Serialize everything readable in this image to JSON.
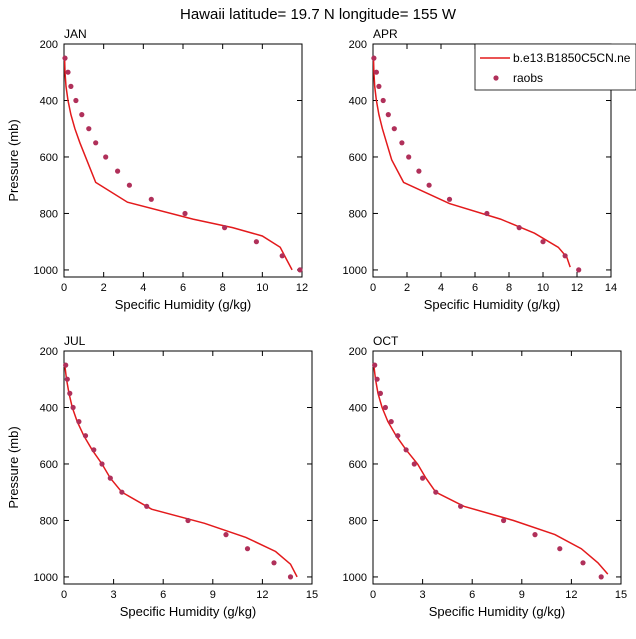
{
  "figure": {
    "title": "Hawaii  latitude= 19.7 N longitude= 155 W",
    "legend": {
      "placement": "top-right",
      "model_label": "b.e13.B1850C5CN.ne",
      "obs_label": "raobs"
    },
    "colors": {
      "model_line": "#e31a1c",
      "obs_marker": "#b0305a",
      "axes": "#000000",
      "background": "#ffffff"
    }
  },
  "chart_data": [
    {
      "type": "line",
      "panel": "JAN",
      "xlabel": "Specific Humidity (g/kg)",
      "ylabel": "Pressure (mb)",
      "xlim": [
        0,
        12
      ],
      "ylim": [
        200,
        1025
      ],
      "y_inverted": true,
      "xticks": [
        0,
        2,
        4,
        6,
        8,
        10,
        12
      ],
      "yticks": [
        200,
        400,
        600,
        800,
        1000
      ],
      "grid": false,
      "series": [
        {
          "name": "b.e13.B1850C5CN.ne",
          "kind": "line",
          "x": [
            0.03,
            0.05,
            0.1,
            0.2,
            0.35,
            0.55,
            0.8,
            1.6,
            3.2,
            6.5,
            8.5,
            10.0,
            10.9,
            11.2,
            11.5
          ],
          "y": [
            250,
            300,
            350,
            400,
            450,
            500,
            550,
            690,
            760,
            820,
            850,
            880,
            920,
            960,
            1000
          ]
        },
        {
          "name": "raobs",
          "kind": "scatter",
          "x": [
            0.05,
            0.2,
            0.35,
            0.6,
            0.9,
            1.25,
            1.6,
            2.1,
            2.7,
            3.3,
            4.4,
            6.1,
            8.1,
            9.7,
            11.0,
            11.9
          ],
          "y": [
            250,
            300,
            350,
            400,
            450,
            500,
            550,
            600,
            650,
            700,
            750,
            800,
            850,
            900,
            950,
            1000
          ]
        }
      ]
    },
    {
      "type": "line",
      "panel": "APR",
      "xlabel": "Specific Humidity (g/kg)",
      "ylabel": "",
      "xlim": [
        0,
        14
      ],
      "ylim": [
        200,
        1025
      ],
      "y_inverted": true,
      "xticks": [
        0,
        2,
        4,
        6,
        8,
        10,
        12,
        14
      ],
      "yticks": [
        200,
        400,
        600,
        800,
        1000
      ],
      "grid": false,
      "series": [
        {
          "name": "b.e13.B1850C5CN.ne",
          "kind": "line",
          "x": [
            0.03,
            0.05,
            0.1,
            0.2,
            0.35,
            0.55,
            0.8,
            1.1,
            1.8,
            4.5,
            7.5,
            9.5,
            10.9,
            11.4,
            11.6
          ],
          "y": [
            250,
            300,
            350,
            400,
            450,
            500,
            550,
            610,
            690,
            765,
            820,
            870,
            920,
            955,
            990
          ]
        },
        {
          "name": "raobs",
          "kind": "scatter",
          "x": [
            0.05,
            0.2,
            0.35,
            0.6,
            0.9,
            1.25,
            1.7,
            2.1,
            2.7,
            3.3,
            4.5,
            6.7,
            8.6,
            10.0,
            11.3,
            12.1
          ],
          "y": [
            250,
            300,
            350,
            400,
            450,
            500,
            550,
            600,
            650,
            700,
            750,
            800,
            850,
            900,
            950,
            1000
          ]
        }
      ]
    },
    {
      "type": "line",
      "panel": "JUL",
      "xlabel": "Specific Humidity (g/kg)",
      "ylabel": "Pressure (mb)",
      "xlim": [
        0,
        15
      ],
      "ylim": [
        200,
        1025
      ],
      "y_inverted": true,
      "xticks": [
        0,
        3,
        6,
        9,
        12,
        15
      ],
      "yticks": [
        200,
        400,
        600,
        800,
        1000
      ],
      "grid": false,
      "series": [
        {
          "name": "b.e13.B1850C5CN.ne",
          "kind": "line",
          "x": [
            0.05,
            0.15,
            0.3,
            0.5,
            0.8,
            1.2,
            1.7,
            2.3,
            2.8,
            3.5,
            5.3,
            8.5,
            11.0,
            12.8,
            13.7,
            14.1
          ],
          "y": [
            250,
            300,
            350,
            400,
            450,
            500,
            550,
            600,
            650,
            700,
            760,
            810,
            860,
            910,
            955,
            1000
          ]
        },
        {
          "name": "raobs",
          "kind": "scatter",
          "x": [
            0.1,
            0.2,
            0.35,
            0.55,
            0.9,
            1.3,
            1.8,
            2.3,
            2.8,
            3.5,
            5.0,
            7.5,
            9.8,
            11.1,
            12.7,
            13.7
          ],
          "y": [
            250,
            300,
            350,
            400,
            450,
            500,
            550,
            600,
            650,
            700,
            750,
            800,
            850,
            900,
            950,
            1000
          ]
        }
      ]
    },
    {
      "type": "line",
      "panel": "OCT",
      "xlabel": "Specific Humidity (g/kg)",
      "ylabel": "",
      "xlim": [
        0,
        15
      ],
      "ylim": [
        200,
        1025
      ],
      "y_inverted": true,
      "xticks": [
        0,
        3,
        6,
        9,
        12,
        15
      ],
      "yticks": [
        200,
        400,
        600,
        800,
        1000
      ],
      "grid": false,
      "series": [
        {
          "name": "b.e13.B1850C5CN.ne",
          "kind": "line",
          "x": [
            0.05,
            0.15,
            0.3,
            0.55,
            0.9,
            1.4,
            2.0,
            2.7,
            3.2,
            3.8,
            5.5,
            8.5,
            11.0,
            12.6,
            13.6,
            14.2
          ],
          "y": [
            250,
            300,
            350,
            400,
            450,
            500,
            550,
            600,
            650,
            700,
            750,
            800,
            850,
            900,
            950,
            990
          ]
        },
        {
          "name": "raobs",
          "kind": "scatter",
          "x": [
            0.1,
            0.25,
            0.45,
            0.75,
            1.1,
            1.5,
            2.0,
            2.5,
            3.0,
            3.8,
            5.3,
            7.9,
            9.8,
            11.3,
            12.7,
            13.8
          ],
          "y": [
            250,
            300,
            350,
            400,
            450,
            500,
            550,
            600,
            650,
            700,
            750,
            800,
            850,
            900,
            950,
            1000
          ]
        }
      ]
    }
  ]
}
